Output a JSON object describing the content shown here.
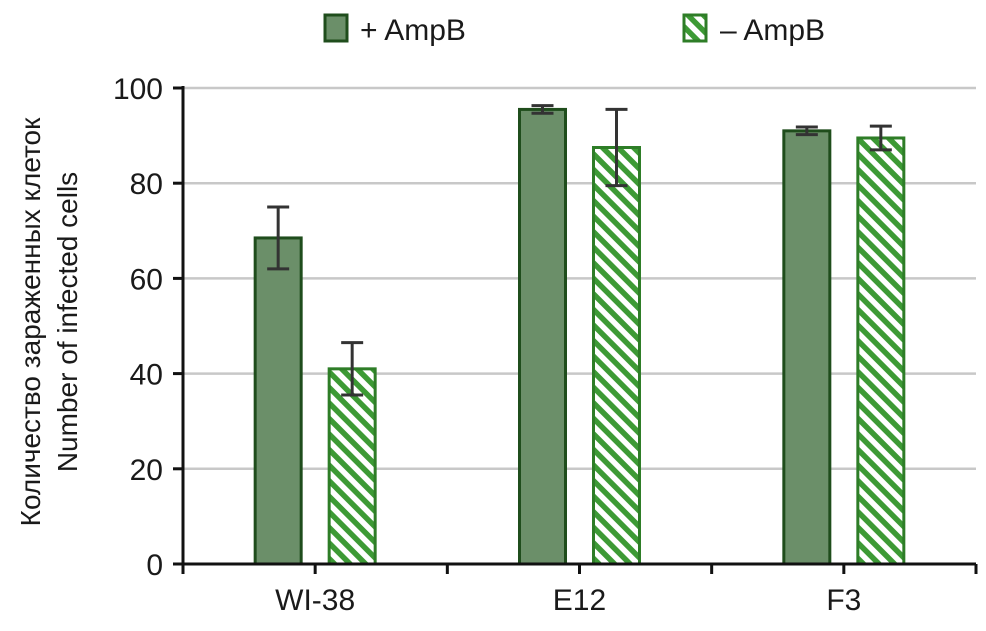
{
  "chart_data": {
    "type": "bar",
    "title": "",
    "xlabel": "",
    "ylabel_lines": [
      "Количество зараженных клеток",
      "Number of infected cells"
    ],
    "categories": [
      "WI-38",
      "E12",
      "F3"
    ],
    "ylim": [
      0,
      100
    ],
    "yticks": [
      0,
      20,
      40,
      60,
      80,
      100
    ],
    "grid": true,
    "legend_position": "top",
    "series": [
      {
        "name": "+ AmpB",
        "pattern": "solid",
        "fill_color": "#6b8f69",
        "edge_color": "#1f4d1c",
        "values": [
          68.5,
          95.5,
          91
        ],
        "errors": [
          6.5,
          0.8,
          0.8
        ]
      },
      {
        "name": "– AmpB",
        "pattern": "hatched",
        "fill_color": "#3d9a35",
        "edge_color": "#2e7d27",
        "values": [
          41,
          87.5,
          89.5
        ],
        "errors": [
          5.5,
          8,
          2.5
        ]
      }
    ],
    "colors": {
      "axis": "#111111",
      "grid": "#c8c8c8",
      "error_bar": "#333333"
    }
  }
}
